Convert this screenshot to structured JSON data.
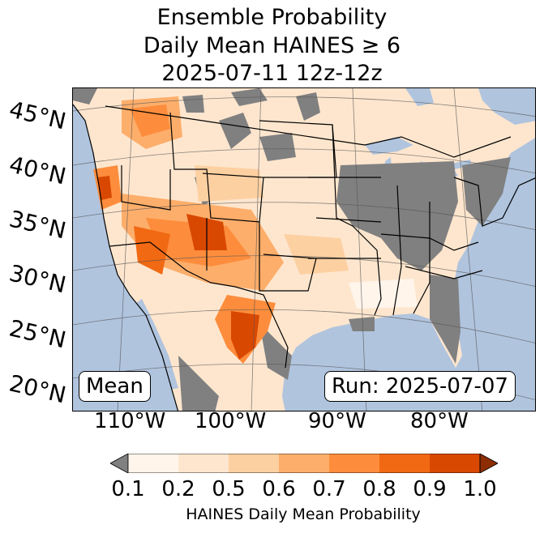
{
  "title": {
    "line1": "Ensemble Probability",
    "line2": "Daily Mean HAINES ≥ 6",
    "line3": "2025-07-11 12z-12z"
  },
  "map": {
    "lat_labels": [
      "45°N",
      "40°N",
      "35°N",
      "30°N",
      "25°N",
      "20°N"
    ],
    "lon_labels": [
      "110°W",
      "100°W",
      "90°W",
      "80°W"
    ],
    "stat_label": "Mean",
    "run_label": "Run: 2025-07-07",
    "colors": {
      "ocean": "#b0c4de",
      "lake": "#b0c4de",
      "land_low": "#fee6ce",
      "no_data": "#808080",
      "hot": "#d94801"
    }
  },
  "colorbar": {
    "label": "HAINES Daily Mean Probability",
    "ticks": [
      "0.1",
      "0.2",
      "0.5",
      "0.6",
      "0.7",
      "0.8",
      "0.9",
      "1.0"
    ],
    "under_color": "#808080",
    "bins": [
      "#fff5eb",
      "#fee6ce",
      "#fdd0a2",
      "#fdae6b",
      "#fd8d3c",
      "#f16913",
      "#d94801"
    ],
    "over_color": "#8c2d04"
  }
}
